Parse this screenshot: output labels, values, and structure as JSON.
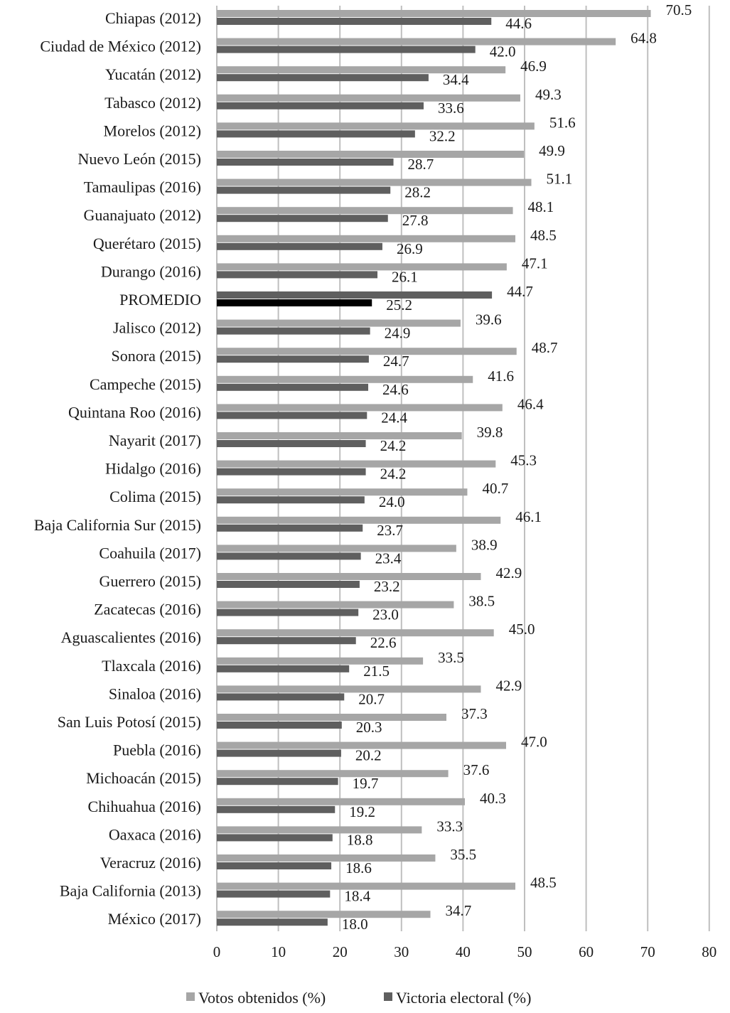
{
  "chart_data": {
    "type": "bar",
    "orientation": "horizontal",
    "title": "",
    "xlabel": "",
    "ylabel": "",
    "xlim": [
      0,
      80
    ],
    "x_ticks": [
      0,
      10,
      20,
      30,
      40,
      50,
      60,
      70,
      80
    ],
    "grid": "vertical",
    "legend_position": "bottom",
    "categories": [
      "Chiapas (2012)",
      "Ciudad de México (2012)",
      "Yucatán (2012)",
      "Tabasco (2012)",
      "Morelos (2012)",
      "Nuevo León (2015)",
      "Tamaulipas (2016)",
      "Guanajuato (2012)",
      "Querétaro (2015)",
      "Durango (2016)",
      "PROMEDIO",
      "Jalisco (2012)",
      "Sonora (2015)",
      "Campeche (2015)",
      "Quintana Roo (2016)",
      "Nayarit (2017)",
      "Hidalgo (2016)",
      "Colima (2015)",
      "Baja California Sur (2015)",
      "Coahuila (2017)",
      "Guerrero (2015)",
      "Zacatecas (2016)",
      "Aguascalientes (2016)",
      "Tlaxcala (2016)",
      "Sinaloa (2016)",
      "San Luis Potosí (2015)",
      "Puebla (2016)",
      "Michoacán (2015)",
      "Chihuahua (2016)",
      "Oaxaca (2016)",
      "Veracruz (2016)",
      "Baja California (2013)",
      "México (2017)"
    ],
    "value_labels_top": [
      "70.5",
      "64.8",
      "46.9",
      "49.3",
      "51.6",
      "49.9",
      "51.1",
      "48.1",
      "48.5",
      "47.1",
      "44.7",
      "39.6",
      "48.7",
      "41.6",
      "46.4",
      "39.8",
      "45.3",
      "40.7",
      "46.1",
      "38.9",
      "42.9",
      "38.5",
      "45.0",
      "33.5",
      "42.9",
      "37.3",
      "47.0",
      "37.6",
      "40.3",
      "33.3",
      "35.5",
      "48.5",
      "34.7"
    ],
    "value_labels_bottom": [
      "44.6",
      "42.0",
      "34.4",
      "33.6",
      "32.2",
      "28.7",
      "28.2",
      "27.8",
      "26.9",
      "26.1",
      "25.2",
      "24.9",
      "24.7",
      "24.6",
      "24.4",
      "24.2",
      "24.2",
      "24.0",
      "23.7",
      "23.4",
      "23.2",
      "23.0",
      "22.6",
      "21.5",
      "20.7",
      "20.3",
      "20.2",
      "19.7",
      "19.2",
      "18.8",
      "18.6",
      "18.4",
      "18.0"
    ],
    "highlight_category": "PROMEDIO",
    "series": [
      {
        "name": "Votos obtenidos (%)",
        "color": "#a6a6a6",
        "values": [
          70.5,
          64.8,
          46.9,
          49.3,
          51.6,
          49.9,
          51.1,
          48.1,
          48.5,
          47.1,
          44.7,
          39.6,
          48.7,
          41.6,
          46.4,
          39.8,
          45.3,
          40.7,
          46.1,
          38.9,
          42.9,
          38.5,
          45.0,
          33.5,
          42.9,
          37.3,
          47.0,
          37.6,
          40.3,
          33.3,
          35.5,
          48.5,
          34.7
        ]
      },
      {
        "name": "Victoria electoral (%)",
        "color": "#5f5f5f",
        "highlight_color": "#000000",
        "values": [
          44.6,
          42.0,
          34.4,
          33.6,
          32.2,
          28.7,
          28.2,
          27.8,
          26.9,
          26.1,
          25.2,
          24.9,
          24.7,
          24.6,
          24.4,
          24.2,
          24.2,
          24.0,
          23.7,
          23.4,
          23.2,
          23.0,
          22.6,
          21.5,
          20.7,
          20.3,
          20.2,
          19.7,
          19.2,
          18.8,
          18.6,
          18.4,
          18.0
        ]
      }
    ],
    "gridline_color": "#bfbfbf"
  }
}
